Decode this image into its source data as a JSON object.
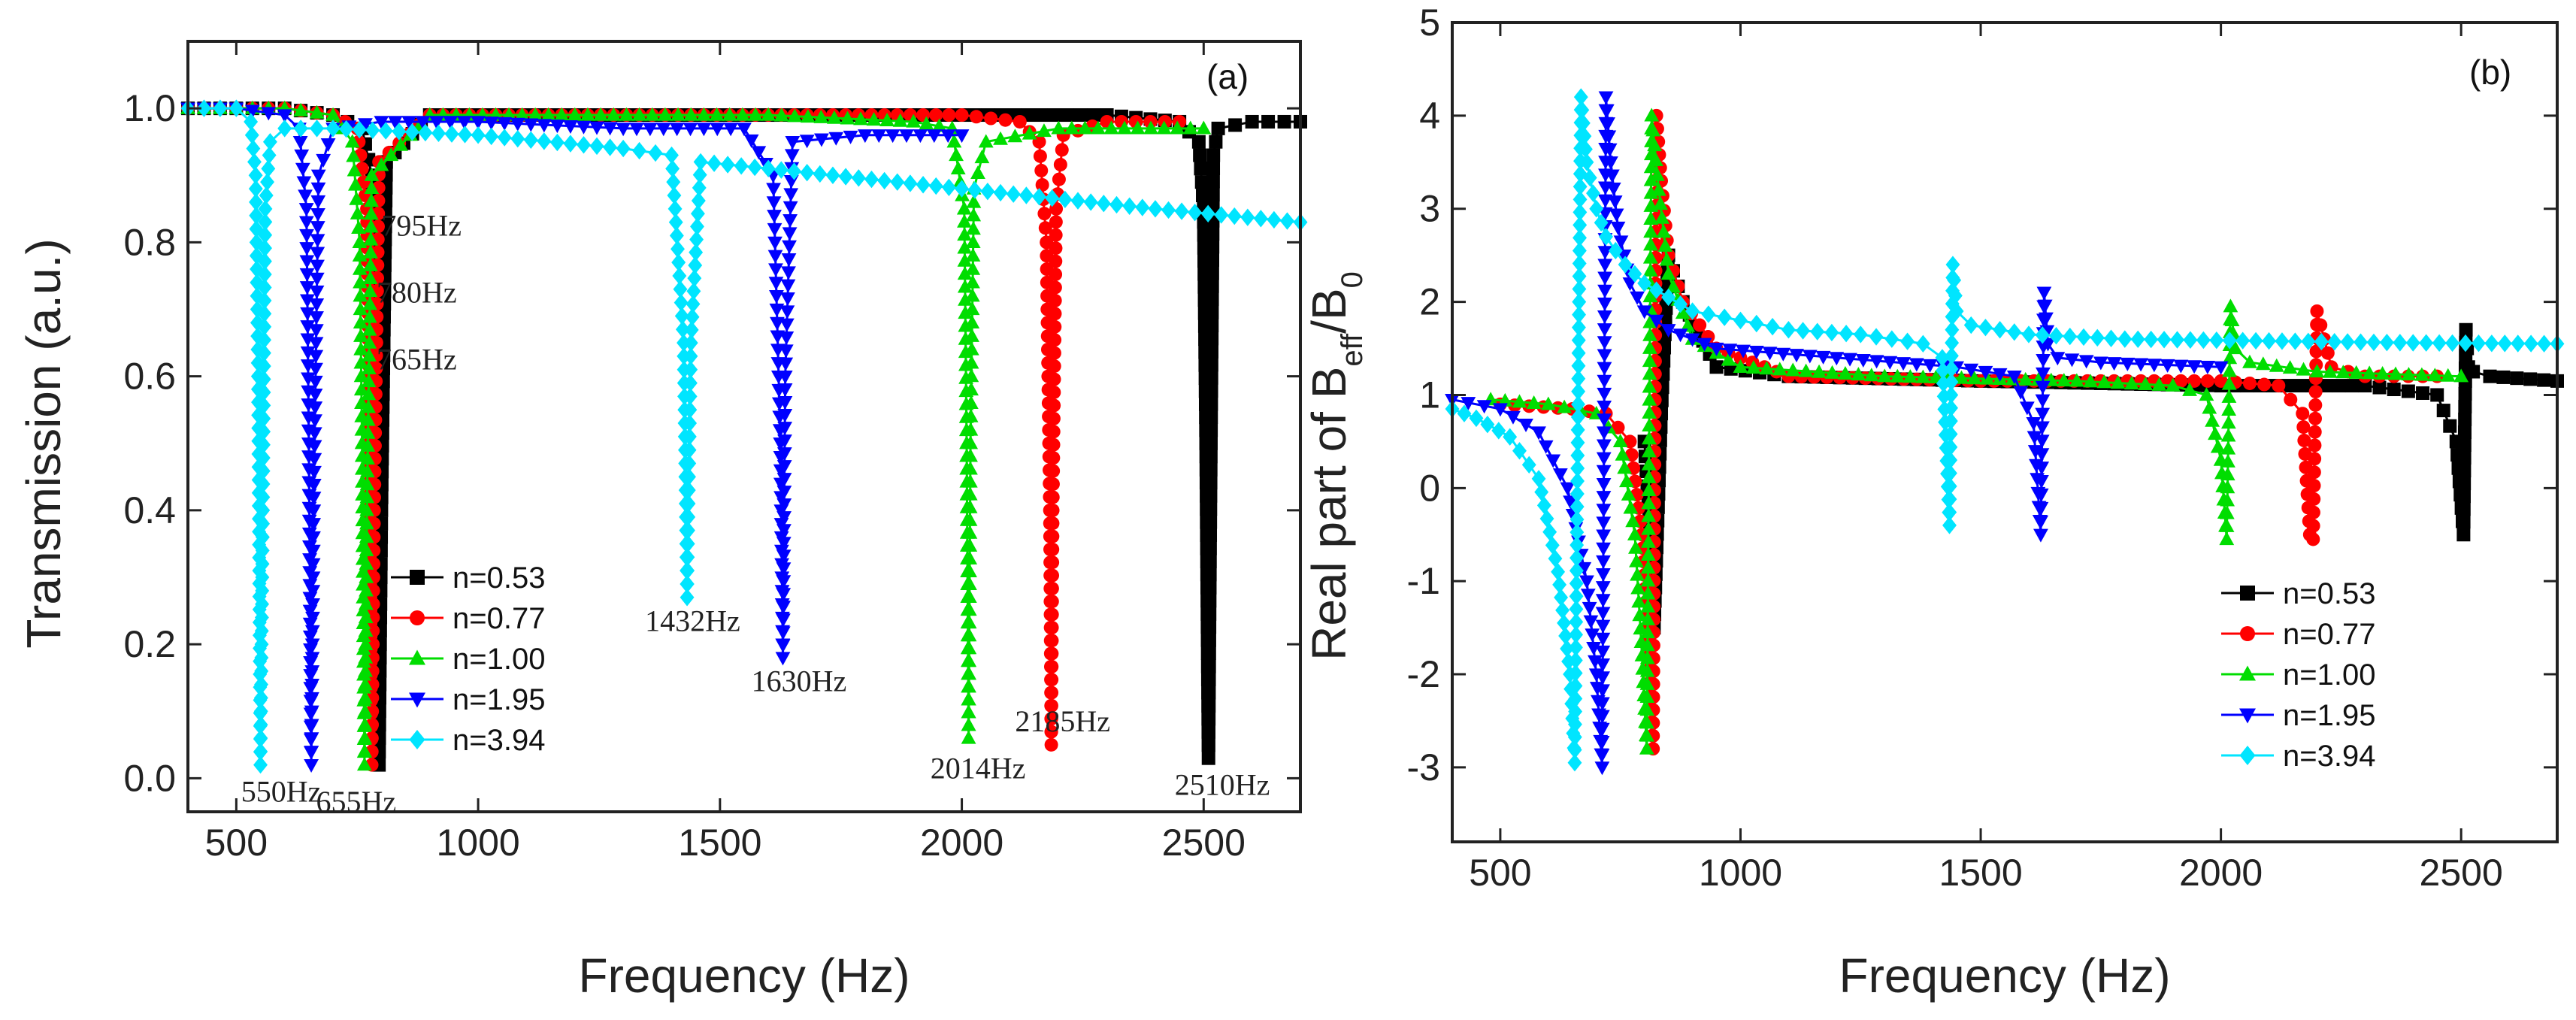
{
  "chart_data": [
    {
      "type": "line",
      "panel_label": "(a)",
      "xlabel": "Frequency (Hz)",
      "ylabel": "Transmission (a.u.)",
      "xlim": [
        400,
        2700
      ],
      "ylim": [
        -0.05,
        1.1
      ],
      "x_ticks": [
        500,
        1000,
        1500,
        2000,
        2500
      ],
      "x_tick_labels": [
        "500",
        "1000",
        "1500",
        "2000",
        "2500"
      ],
      "y_ticks": [
        0.0,
        0.2,
        0.4,
        0.6,
        0.8,
        1.0
      ],
      "y_tick_labels": [
        "0.0",
        "0.2",
        "0.4",
        "0.6",
        "0.8",
        "1.0"
      ],
      "grid": false,
      "legend_position": "lower-left",
      "series": [
        {
          "name": "n=0.53",
          "color": "#000000",
          "marker": "square",
          "x": [
            400,
            500,
            600,
            700,
            760,
            780,
            790,
            795,
            800,
            810,
            900,
            1200,
            1600,
            2000,
            2300,
            2450,
            2490,
            2500,
            2505,
            2510,
            2515,
            2520,
            2530,
            2600,
            2700
          ],
          "y": [
            1.0,
            1.0,
            1.0,
            0.99,
            0.97,
            0.9,
            0.6,
            0.02,
            0.4,
            0.92,
            0.99,
            0.99,
            0.99,
            0.99,
            0.99,
            0.98,
            0.95,
            0.85,
            0.5,
            0.03,
            0.5,
            0.93,
            0.97,
            0.98,
            0.98
          ]
        },
        {
          "name": "n=0.77",
          "color": "#ff0000",
          "marker": "circle",
          "x": [
            400,
            500,
            600,
            700,
            750,
            770,
            775,
            780,
            785,
            795,
            900,
            1200,
            1600,
            2000,
            2120,
            2160,
            2175,
            2182,
            2185,
            2188,
            2195,
            2210,
            2300,
            2450
          ],
          "y": [
            1.0,
            1.0,
            1.0,
            0.99,
            0.97,
            0.85,
            0.5,
            0.02,
            0.4,
            0.92,
            0.99,
            0.99,
            0.99,
            0.99,
            0.98,
            0.95,
            0.8,
            0.4,
            0.05,
            0.4,
            0.85,
            0.96,
            0.98,
            0.98
          ]
        },
        {
          "name": "n=1.00",
          "color": "#00dd00",
          "marker": "triangle-up",
          "x": [
            400,
            500,
            600,
            700,
            740,
            755,
            760,
            765,
            770,
            780,
            900,
            1200,
            1600,
            1900,
            1980,
            2005,
            2010,
            2014,
            2018,
            2025,
            2050,
            2200,
            2500
          ],
          "y": [
            1.0,
            1.0,
            1.0,
            0.99,
            0.95,
            0.8,
            0.5,
            0.02,
            0.4,
            0.9,
            0.99,
            0.99,
            0.99,
            0.98,
            0.97,
            0.85,
            0.5,
            0.06,
            0.5,
            0.88,
            0.95,
            0.97,
            0.97
          ]
        },
        {
          "name": "n=1.95",
          "color": "#0000ff",
          "marker": "triangle-down",
          "x": [
            400,
            500,
            600,
            630,
            645,
            650,
            655,
            660,
            670,
            700,
            800,
            1000,
            1300,
            1550,
            1610,
            1625,
            1630,
            1635,
            1650,
            1800,
            2000
          ],
          "y": [
            1.0,
            1.0,
            0.99,
            0.97,
            0.85,
            0.5,
            0.02,
            0.4,
            0.9,
            0.97,
            0.98,
            0.98,
            0.97,
            0.97,
            0.9,
            0.5,
            0.18,
            0.6,
            0.95,
            0.96,
            0.96
          ]
        },
        {
          "name": "n=3.94",
          "color": "#00e5ff",
          "marker": "diamond",
          "x": [
            400,
            500,
            530,
            540,
            545,
            550,
            555,
            560,
            570,
            600,
            700,
            1000,
            1300,
            1400,
            1425,
            1432,
            1440,
            1460,
            1600,
            2000,
            2400,
            2700
          ],
          "y": [
            1.0,
            1.0,
            0.98,
            0.9,
            0.6,
            0.02,
            0.4,
            0.85,
            0.95,
            0.97,
            0.97,
            0.96,
            0.94,
            0.93,
            0.65,
            0.27,
            0.65,
            0.92,
            0.91,
            0.88,
            0.85,
            0.83
          ]
        }
      ],
      "annotations": [
        {
          "text": "795Hz",
          "x": 800,
          "y": 0.81
        },
        {
          "text": "780Hz",
          "x": 790,
          "y": 0.71
        },
        {
          "text": "765Hz",
          "x": 790,
          "y": 0.61
        },
        {
          "text": "550Hz",
          "x": 510,
          "y": -0.035
        },
        {
          "text": "655Hz",
          "x": 665,
          "y": -0.05
        },
        {
          "text": "1432Hz",
          "x": 1345,
          "y": 0.22
        },
        {
          "text": "1630Hz",
          "x": 1565,
          "y": 0.13
        },
        {
          "text": "2014Hz",
          "x": 1935,
          "y": 0.0
        },
        {
          "text": "2185Hz",
          "x": 2110,
          "y": 0.07
        },
        {
          "text": "2510Hz",
          "x": 2440,
          "y": -0.025
        }
      ]
    },
    {
      "type": "line",
      "panel_label": "(b)",
      "xlabel": "Frequency (Hz)",
      "ylabel_main": "Real part of B",
      "ylabel_sub1": "eff",
      "ylabel_mid": "/B",
      "ylabel_sub2": "0",
      "xlim": [
        400,
        2700
      ],
      "ylim": [
        -3.8,
        5
      ],
      "x_ticks": [
        500,
        1000,
        1500,
        2000,
        2500
      ],
      "x_tick_labels": [
        "500",
        "1000",
        "1500",
        "2000",
        "2500"
      ],
      "y_ticks": [
        -3,
        -2,
        -1,
        0,
        1,
        2,
        3,
        4,
        5
      ],
      "y_tick_labels": [
        "-3",
        "-2",
        "-1",
        "0",
        "1",
        "2",
        "3",
        "4",
        "5"
      ],
      "grid": false,
      "legend_position": "lower-right",
      "series": [
        {
          "name": "n=0.53",
          "color": "#000000",
          "marker": "square",
          "x": [
            800,
            810,
            820,
            835,
            850,
            880,
            950,
            1100,
            1500,
            2000,
            2300,
            2450,
            2490,
            2505,
            2510,
            2515,
            2525,
            2560,
            2700
          ],
          "y": [
            0.5,
            -0.3,
            -1.5,
            0.8,
            2.5,
            2.0,
            1.3,
            1.2,
            1.15,
            1.1,
            1.1,
            1.0,
            0.5,
            -0.5,
            1.7,
            1.3,
            1.25,
            1.2,
            1.15
          ]
        },
        {
          "name": "n=0.77",
          "color": "#ff0000",
          "marker": "circle",
          "x": [
            500,
            650,
            720,
            770,
            795,
            810,
            818,
            825,
            835,
            850,
            880,
            950,
            1100,
            1500,
            2000,
            2120,
            2170,
            2185,
            2192,
            2200,
            2230,
            2300,
            2450
          ],
          "y": [
            0.9,
            0.85,
            0.8,
            0.5,
            -0.5,
            -1.8,
            -2.8,
            4.0,
            3.3,
            2.5,
            2.0,
            1.5,
            1.2,
            1.15,
            1.15,
            1.1,
            0.8,
            -0.5,
            -0.55,
            1.9,
            1.3,
            1.2,
            1.2
          ]
        },
        {
          "name": "n=1.00",
          "color": "#00dd00",
          "marker": "triangle-up",
          "x": [
            480,
            600,
            700,
            750,
            780,
            795,
            805,
            815,
            830,
            850,
            900,
            1000,
            1300,
            1700,
            1900,
            1970,
            2000,
            2012,
            2020,
            2030,
            2060,
            2200,
            2500
          ],
          "y": [
            0.95,
            0.9,
            0.8,
            0.5,
            -0.5,
            -1.8,
            -2.8,
            4.0,
            3.2,
            2.3,
            1.6,
            1.3,
            1.2,
            1.15,
            1.1,
            1.0,
            0.3,
            -0.55,
            1.95,
            1.5,
            1.35,
            1.25,
            1.2
          ]
        },
        {
          "name": "n=1.95",
          "color": "#0000ff",
          "marker": "triangle-down",
          "x": [
            400,
            500,
            580,
            640,
            680,
            700,
            712,
            720,
            730,
            745,
            770,
            800,
            850,
            950,
            1200,
            1450,
            1570,
            1610,
            1625,
            1632,
            1640,
            1660,
            1750,
            2000
          ],
          "y": [
            0.95,
            0.85,
            0.6,
            0.0,
            -1.0,
            -2.0,
            -3.0,
            4.2,
            3.5,
            2.8,
            2.2,
            1.9,
            1.7,
            1.5,
            1.4,
            1.3,
            1.2,
            0.7,
            -0.5,
            2.1,
            1.55,
            1.4,
            1.35,
            1.3
          ]
        },
        {
          "name": "n=3.94",
          "color": "#00e5ff",
          "marker": "diamond",
          "x": [
            400,
            450,
            520,
            580,
            620,
            645,
            655,
            668,
            680,
            700,
            720,
            760,
            800,
            900,
            1000,
            1100,
            1250,
            1380,
            1420,
            1435,
            1442,
            1450,
            1480,
            1600,
            1800,
            2100,
            2400,
            2700
          ],
          "y": [
            0.85,
            0.75,
            0.55,
            0.1,
            -0.9,
            -2.0,
            -2.95,
            4.2,
            3.5,
            3.0,
            2.7,
            2.4,
            2.2,
            1.9,
            1.8,
            1.7,
            1.65,
            1.55,
            1.4,
            -0.4,
            2.4,
            1.9,
            1.75,
            1.65,
            1.6,
            1.58,
            1.56,
            1.55
          ]
        }
      ]
    }
  ]
}
